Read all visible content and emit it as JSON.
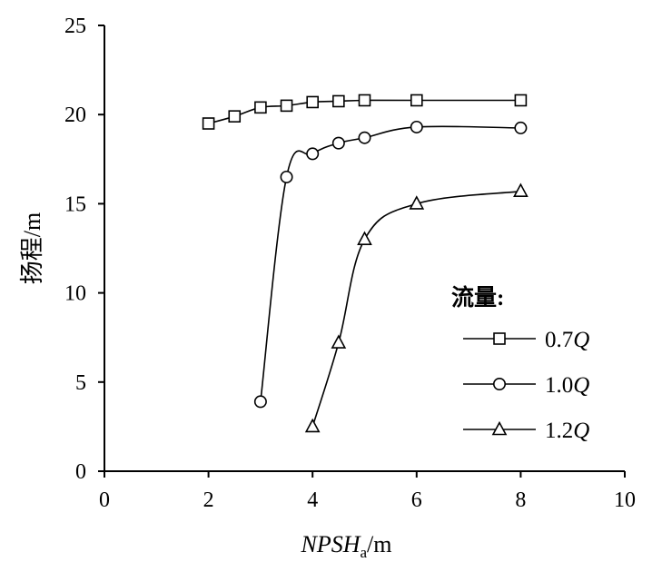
{
  "chart_data": {
    "type": "line",
    "xlabel": {
      "main": "NPSH",
      "sub": "a",
      "unit": "/m"
    },
    "ylabel": "扬程/m",
    "xlim": [
      0,
      10
    ],
    "ylim": [
      0,
      25
    ],
    "x_ticks": [
      "0",
      "2",
      "4",
      "6",
      "8",
      "10"
    ],
    "y_ticks": [
      "0",
      "5",
      "10",
      "15",
      "20",
      "25"
    ],
    "grid": false,
    "legend": {
      "title": "流量:",
      "placement": "right",
      "entries": [
        {
          "prefix": "0.7",
          "italic": "Q",
          "marker": "square"
        },
        {
          "prefix": "1.0",
          "italic": "Q",
          "marker": "circle"
        },
        {
          "prefix": "1.2",
          "italic": "Q",
          "marker": "triangle"
        }
      ]
    },
    "series": [
      {
        "marker": "square",
        "x": [
          2,
          2.5,
          3,
          3.5,
          4,
          4.5,
          5,
          6,
          8
        ],
        "y": [
          19.5,
          19.9,
          20.4,
          20.5,
          20.7,
          20.75,
          20.8,
          20.8,
          20.8
        ]
      },
      {
        "marker": "circle",
        "x": [
          3,
          3.5,
          4,
          4.5,
          5,
          6,
          8
        ],
        "y": [
          3.9,
          16.5,
          17.8,
          18.4,
          18.7,
          19.3,
          19.25
        ]
      },
      {
        "marker": "triangle",
        "x": [
          4,
          4.5,
          5,
          6,
          8
        ],
        "y": [
          2.5,
          7.2,
          13.0,
          15.0,
          15.7
        ]
      }
    ]
  }
}
